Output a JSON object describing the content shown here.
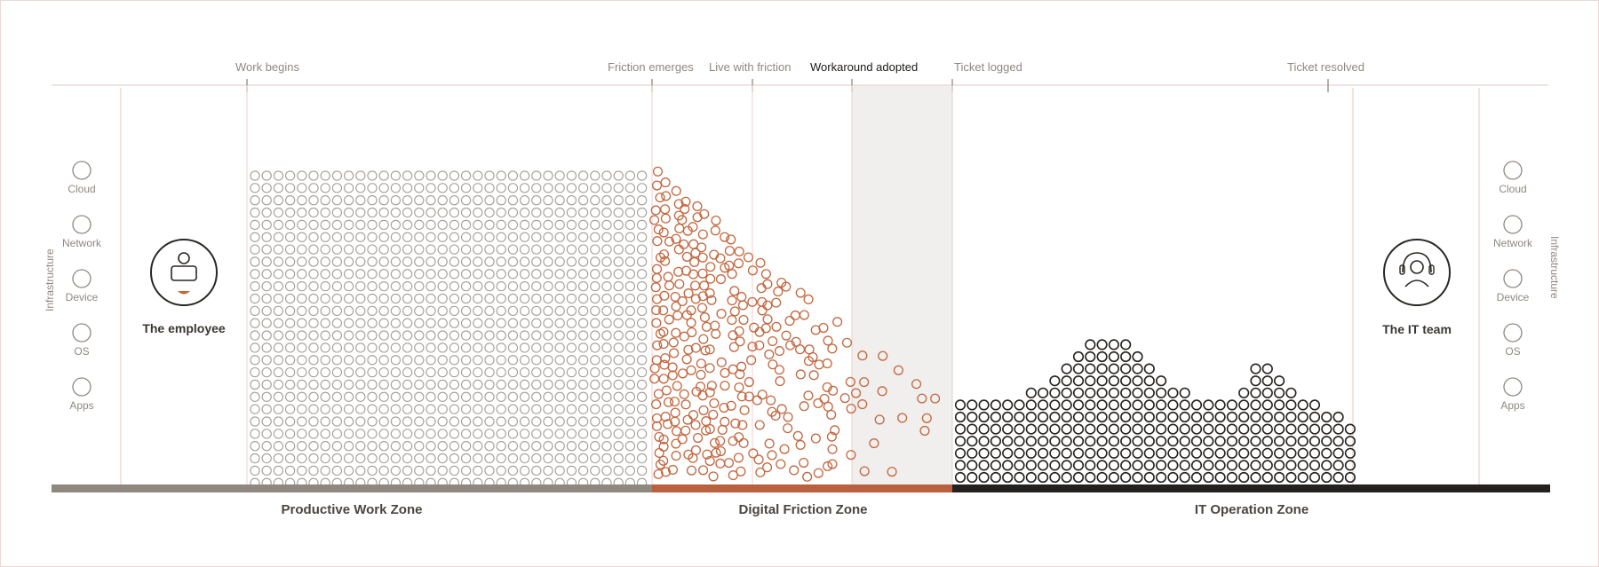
{
  "milestones": [
    {
      "label": "Work begins",
      "active": false
    },
    {
      "label": "Friction emerges",
      "active": false
    },
    {
      "label": "Live with friction",
      "active": false
    },
    {
      "label": "Workaround adopted",
      "active": true
    },
    {
      "label": "Ticket logged",
      "active": false
    },
    {
      "label": "Ticket resolved",
      "active": false
    }
  ],
  "infrastructure": {
    "title": "Infrastructure",
    "layers": [
      "Cloud",
      "Network",
      "Device",
      "OS",
      "Apps"
    ]
  },
  "actors": {
    "employee": {
      "label": "The employee",
      "icon": "employee-laptop-icon"
    },
    "it_team": {
      "label": "The IT team",
      "icon": "it-support-headset-icon"
    }
  },
  "zones": [
    {
      "label": "Productive Work Zone",
      "color": "#8e887f"
    },
    {
      "label": "Digital Friction Zone",
      "color": "#b9613f"
    },
    {
      "label": "IT Operation Zone",
      "color": "#24211e"
    }
  ],
  "colors": {
    "productive_dots": "#a39e97",
    "friction_dots": "#c2673f",
    "it_dots": "#24211e",
    "workaround_highlight": "#f0efed",
    "axis_line": "#ecdcd6",
    "divider": "#ecd2cc"
  },
  "dot_counts": {
    "productive": {
      "columns": 34,
      "rows": 26
    },
    "it_operation": {
      "columns": 34,
      "stacks": "hills"
    }
  }
}
